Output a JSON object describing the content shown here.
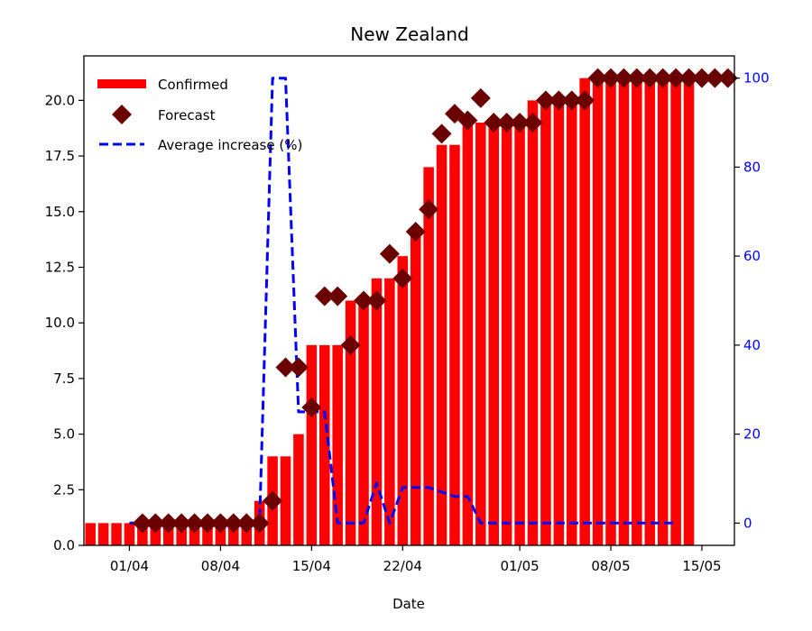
{
  "chart_data": {
    "type": "bar",
    "title": "New Zealand",
    "xlabel": "Date",
    "ylabel": "",
    "y2label": "",
    "ylim": [
      0,
      22
    ],
    "y2lim": [
      -5,
      105
    ],
    "x_range": [
      "2020-03-29",
      "2020-05-17"
    ],
    "x_ticks": [
      {
        "date": "2020-04-01",
        "label": "01/04"
      },
      {
        "date": "2020-04-08",
        "label": "08/04"
      },
      {
        "date": "2020-04-15",
        "label": "15/04"
      },
      {
        "date": "2020-04-22",
        "label": "22/04"
      },
      {
        "date": "2020-05-01",
        "label": "01/05"
      },
      {
        "date": "2020-05-08",
        "label": "08/05"
      },
      {
        "date": "2020-05-15",
        "label": "15/05"
      }
    ],
    "y_ticks": [
      0.0,
      2.5,
      5.0,
      7.5,
      10.0,
      12.5,
      15.0,
      17.5,
      20.0
    ],
    "y_tick_labels": [
      "0.0",
      "2.5",
      "5.0",
      "7.5",
      "10.0",
      "12.5",
      "15.0",
      "17.5",
      "20.0"
    ],
    "y2_ticks": [
      0,
      20,
      40,
      60,
      80,
      100
    ],
    "y2_tick_labels": [
      "0",
      "20",
      "40",
      "60",
      "80",
      "100"
    ],
    "legend_position": "top-left",
    "grid": false,
    "series": [
      {
        "name": "Confirmed",
        "kind": "bar",
        "axis": "left",
        "color": "#ff0000",
        "points": [
          [
            "2020-03-29",
            1
          ],
          [
            "2020-03-30",
            1
          ],
          [
            "2020-03-31",
            1
          ],
          [
            "2020-04-01",
            1
          ],
          [
            "2020-04-02",
            1
          ],
          [
            "2020-04-03",
            1
          ],
          [
            "2020-04-04",
            1
          ],
          [
            "2020-04-05",
            1
          ],
          [
            "2020-04-06",
            1
          ],
          [
            "2020-04-07",
            1
          ],
          [
            "2020-04-08",
            1
          ],
          [
            "2020-04-09",
            1
          ],
          [
            "2020-04-10",
            1
          ],
          [
            "2020-04-11",
            2
          ],
          [
            "2020-04-12",
            4
          ],
          [
            "2020-04-13",
            4
          ],
          [
            "2020-04-14",
            5
          ],
          [
            "2020-04-15",
            9
          ],
          [
            "2020-04-16",
            9
          ],
          [
            "2020-04-17",
            9
          ],
          [
            "2020-04-18",
            11
          ],
          [
            "2020-04-19",
            11
          ],
          [
            "2020-04-20",
            12
          ],
          [
            "2020-04-21",
            12
          ],
          [
            "2020-04-22",
            13
          ],
          [
            "2020-04-23",
            14
          ],
          [
            "2020-04-24",
            17
          ],
          [
            "2020-04-25",
            18
          ],
          [
            "2020-04-26",
            18
          ],
          [
            "2020-04-27",
            19
          ],
          [
            "2020-04-28",
            19
          ],
          [
            "2020-04-29",
            19
          ],
          [
            "2020-04-30",
            19
          ],
          [
            "2020-05-01",
            19
          ],
          [
            "2020-05-02",
            20
          ],
          [
            "2020-05-03",
            20
          ],
          [
            "2020-05-04",
            20
          ],
          [
            "2020-05-05",
            20
          ],
          [
            "2020-05-06",
            21
          ],
          [
            "2020-05-07",
            21
          ],
          [
            "2020-05-08",
            21
          ],
          [
            "2020-05-09",
            21
          ],
          [
            "2020-05-10",
            21
          ],
          [
            "2020-05-11",
            21
          ],
          [
            "2020-05-12",
            21
          ],
          [
            "2020-05-13",
            21
          ],
          [
            "2020-05-14",
            21
          ]
        ]
      },
      {
        "name": "Forecast",
        "kind": "scatter",
        "marker": "diamond",
        "axis": "left",
        "color": "#6b0000",
        "points": [
          [
            "2020-04-02",
            1
          ],
          [
            "2020-04-03",
            1
          ],
          [
            "2020-04-04",
            1
          ],
          [
            "2020-04-05",
            1
          ],
          [
            "2020-04-06",
            1
          ],
          [
            "2020-04-07",
            1
          ],
          [
            "2020-04-08",
            1
          ],
          [
            "2020-04-09",
            1
          ],
          [
            "2020-04-10",
            1
          ],
          [
            "2020-04-11",
            1
          ],
          [
            "2020-04-12",
            2
          ],
          [
            "2020-04-13",
            8
          ],
          [
            "2020-04-14",
            8
          ],
          [
            "2020-04-15",
            6.2
          ],
          [
            "2020-04-16",
            11.2
          ],
          [
            "2020-04-17",
            11.2
          ],
          [
            "2020-04-18",
            9
          ],
          [
            "2020-04-19",
            11
          ],
          [
            "2020-04-20",
            11
          ],
          [
            "2020-04-21",
            13.1
          ],
          [
            "2020-04-22",
            12
          ],
          [
            "2020-04-23",
            14.1
          ],
          [
            "2020-04-24",
            15.1
          ],
          [
            "2020-04-25",
            18.5
          ],
          [
            "2020-04-26",
            19.4
          ],
          [
            "2020-04-27",
            19.1
          ],
          [
            "2020-04-28",
            20.1
          ],
          [
            "2020-04-29",
            19
          ],
          [
            "2020-04-30",
            19
          ],
          [
            "2020-05-01",
            19
          ],
          [
            "2020-05-02",
            19
          ],
          [
            "2020-05-03",
            20
          ],
          [
            "2020-05-04",
            20
          ],
          [
            "2020-05-05",
            20
          ],
          [
            "2020-05-06",
            20
          ],
          [
            "2020-05-07",
            21
          ],
          [
            "2020-05-08",
            21
          ],
          [
            "2020-05-09",
            21
          ],
          [
            "2020-05-10",
            21
          ],
          [
            "2020-05-11",
            21
          ],
          [
            "2020-05-12",
            21
          ],
          [
            "2020-05-13",
            21
          ],
          [
            "2020-05-14",
            21
          ],
          [
            "2020-05-15",
            21
          ],
          [
            "2020-05-16",
            21
          ],
          [
            "2020-05-17",
            21
          ]
        ]
      },
      {
        "name": "Average increase (%)",
        "kind": "line",
        "style": "dashed",
        "axis": "right",
        "color": "#0000ff",
        "points": [
          [
            "2020-04-01",
            0
          ],
          [
            "2020-04-02",
            0
          ],
          [
            "2020-04-03",
            0
          ],
          [
            "2020-04-04",
            0
          ],
          [
            "2020-04-05",
            0
          ],
          [
            "2020-04-06",
            0
          ],
          [
            "2020-04-07",
            0
          ],
          [
            "2020-04-08",
            0
          ],
          [
            "2020-04-09",
            0
          ],
          [
            "2020-04-10",
            0
          ],
          [
            "2020-04-11",
            0
          ],
          [
            "2020-04-12",
            100
          ],
          [
            "2020-04-13",
            100
          ],
          [
            "2020-04-14",
            25
          ],
          [
            "2020-04-15",
            25
          ],
          [
            "2020-04-16",
            25
          ],
          [
            "2020-04-17",
            0
          ],
          [
            "2020-04-18",
            0
          ],
          [
            "2020-04-19",
            0
          ],
          [
            "2020-04-20",
            9
          ],
          [
            "2020-04-21",
            0
          ],
          [
            "2020-04-22",
            8
          ],
          [
            "2020-04-23",
            8
          ],
          [
            "2020-04-24",
            8
          ],
          [
            "2020-04-25",
            7
          ],
          [
            "2020-04-26",
            6
          ],
          [
            "2020-04-27",
            6
          ],
          [
            "2020-04-28",
            0
          ],
          [
            "2020-04-29",
            0
          ],
          [
            "2020-04-30",
            0
          ],
          [
            "2020-05-01",
            0
          ],
          [
            "2020-05-02",
            0
          ],
          [
            "2020-05-03",
            0
          ],
          [
            "2020-05-04",
            0
          ],
          [
            "2020-05-05",
            0
          ],
          [
            "2020-05-06",
            0
          ],
          [
            "2020-05-07",
            0
          ],
          [
            "2020-05-08",
            0
          ],
          [
            "2020-05-09",
            0
          ],
          [
            "2020-05-10",
            0
          ],
          [
            "2020-05-11",
            0
          ],
          [
            "2020-05-12",
            0
          ],
          [
            "2020-05-13",
            0
          ]
        ]
      }
    ]
  }
}
